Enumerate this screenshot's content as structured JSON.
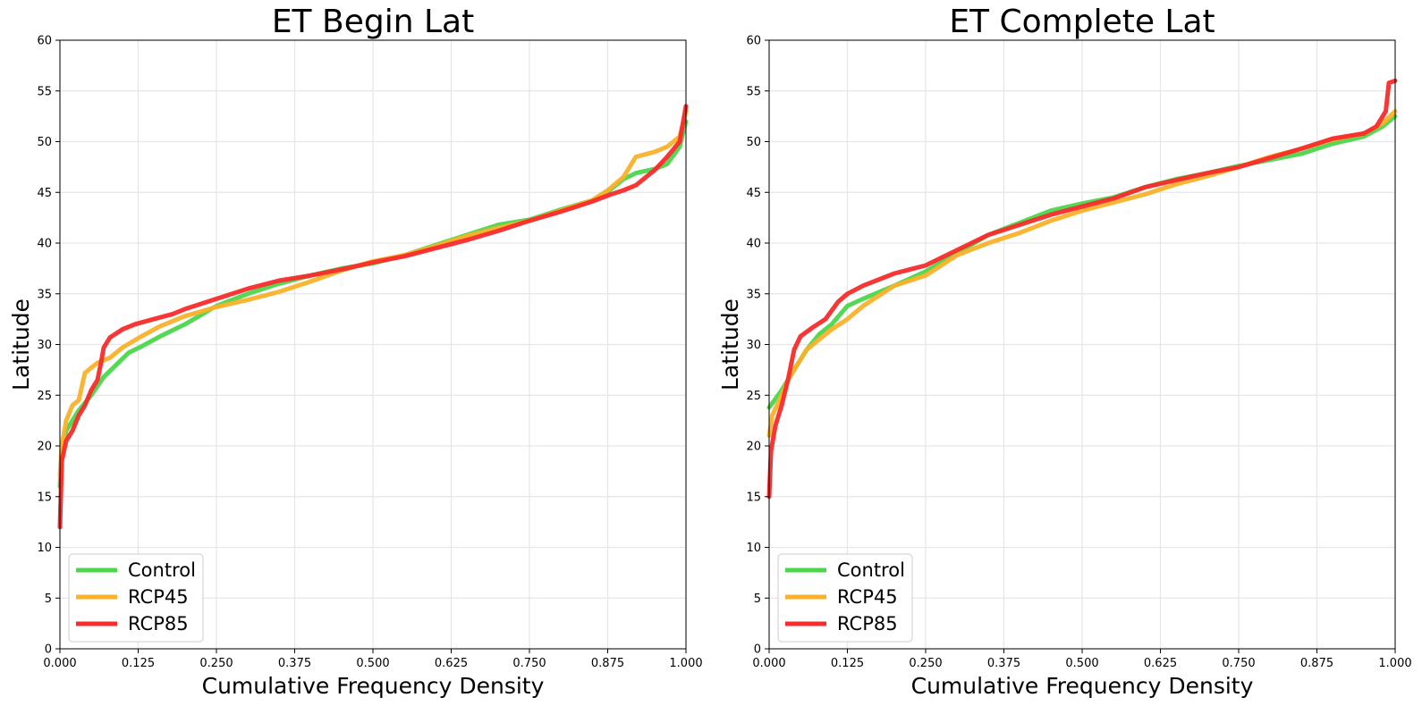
{
  "colors": {
    "Control": "#4cd64c",
    "RCP45": "#fbb12a",
    "RCP85": "#f92b2b",
    "grid": "#e6e6e6",
    "axis": "#000000"
  },
  "chart_data": [
    {
      "type": "line",
      "title": "ET Begin Lat",
      "xlabel": "Cumulative Frequency Density",
      "ylabel": "Latitude",
      "xlim": [
        0,
        1
      ],
      "ylim": [
        0,
        60
      ],
      "xticks": [
        "0.000",
        "0.125",
        "0.250",
        "0.375",
        "0.500",
        "0.625",
        "0.750",
        "0.875",
        "1.000"
      ],
      "yticks": [
        "0",
        "5",
        "10",
        "15",
        "20",
        "25",
        "30",
        "35",
        "40",
        "45",
        "50",
        "55",
        "60"
      ],
      "grid": true,
      "legend_position": "lower-left",
      "series": [
        {
          "name": "Control",
          "x": [
            0,
            0.003,
            0.01,
            0.02,
            0.03,
            0.05,
            0.07,
            0.09,
            0.11,
            0.13,
            0.16,
            0.2,
            0.25,
            0.3,
            0.35,
            0.4,
            0.45,
            0.5,
            0.55,
            0.6,
            0.65,
            0.7,
            0.75,
            0.8,
            0.85,
            0.88,
            0.9,
            0.92,
            0.95,
            0.97,
            0.99,
            1.0
          ],
          "y": [
            16,
            19.5,
            21.5,
            22.5,
            23.5,
            25,
            26.8,
            28,
            29.2,
            29.8,
            30.8,
            32,
            33.8,
            35,
            36,
            36.8,
            37.5,
            38,
            38.8,
            39.8,
            40.8,
            41.8,
            42.3,
            43.3,
            44.2,
            45.3,
            46.3,
            46.9,
            47.3,
            47.8,
            49.5,
            52
          ]
        },
        {
          "name": "RCP45",
          "x": [
            0,
            0.003,
            0.01,
            0.02,
            0.03,
            0.04,
            0.05,
            0.06,
            0.08,
            0.1,
            0.13,
            0.16,
            0.2,
            0.25,
            0.3,
            0.35,
            0.4,
            0.45,
            0.5,
            0.55,
            0.6,
            0.65,
            0.7,
            0.75,
            0.8,
            0.85,
            0.875,
            0.9,
            0.92,
            0.95,
            0.97,
            0.99,
            1.0
          ],
          "y": [
            17,
            20,
            22.5,
            24,
            24.5,
            27.2,
            27.7,
            28.2,
            28.7,
            29.7,
            30.8,
            31.8,
            32.8,
            33.7,
            34.4,
            35.2,
            36.2,
            37.3,
            38.2,
            38.8,
            39.7,
            40.7,
            41.5,
            42.2,
            43.2,
            44.2,
            45.2,
            46.5,
            48.5,
            49,
            49.5,
            50.5,
            53
          ]
        },
        {
          "name": "RCP85",
          "x": [
            0,
            0.003,
            0.01,
            0.02,
            0.03,
            0.04,
            0.05,
            0.06,
            0.065,
            0.07,
            0.08,
            0.1,
            0.12,
            0.15,
            0.18,
            0.2,
            0.25,
            0.3,
            0.35,
            0.4,
            0.45,
            0.5,
            0.55,
            0.6,
            0.65,
            0.7,
            0.75,
            0.8,
            0.85,
            0.88,
            0.9,
            0.92,
            0.95,
            0.97,
            0.99,
            1.0
          ],
          "y": [
            12,
            18.5,
            20.5,
            21.5,
            23,
            24,
            25.5,
            26.5,
            28,
            29.7,
            30.7,
            31.5,
            32,
            32.5,
            33,
            33.5,
            34.5,
            35.5,
            36.3,
            36.8,
            37.4,
            38.1,
            38.7,
            39.5,
            40.3,
            41.2,
            42.2,
            43.1,
            44.1,
            44.8,
            45.2,
            45.7,
            47.2,
            48.5,
            50,
            53.5
          ]
        }
      ]
    },
    {
      "type": "line",
      "title": "ET Complete Lat",
      "xlabel": "Cumulative Frequency Density",
      "ylabel": "Latitude",
      "xlim": [
        0,
        1
      ],
      "ylim": [
        0,
        60
      ],
      "xticks": [
        "0.000",
        "0.125",
        "0.250",
        "0.375",
        "0.500",
        "0.625",
        "0.750",
        "0.875",
        "1.000"
      ],
      "yticks": [
        "0",
        "5",
        "10",
        "15",
        "20",
        "25",
        "30",
        "35",
        "40",
        "45",
        "50",
        "55",
        "60"
      ],
      "grid": true,
      "legend_position": "lower-left",
      "series": [
        {
          "name": "Control",
          "x": [
            0,
            0.005,
            0.02,
            0.03,
            0.04,
            0.06,
            0.08,
            0.1,
            0.125,
            0.15,
            0.2,
            0.25,
            0.3,
            0.35,
            0.4,
            0.45,
            0.5,
            0.55,
            0.6,
            0.65,
            0.7,
            0.75,
            0.8,
            0.85,
            0.9,
            0.95,
            0.98,
            1.0
          ],
          "y": [
            23.8,
            24.2,
            25.5,
            26.5,
            27.5,
            29.5,
            31,
            32,
            33.8,
            34.5,
            35.8,
            37.2,
            39,
            40.8,
            42,
            43.2,
            43.9,
            44.5,
            45.5,
            46.3,
            46.9,
            47.6,
            48.2,
            48.8,
            49.8,
            50.5,
            51.5,
            52.5
          ]
        },
        {
          "name": "RCP45",
          "x": [
            0,
            0.005,
            0.02,
            0.03,
            0.04,
            0.06,
            0.08,
            0.1,
            0.125,
            0.15,
            0.2,
            0.25,
            0.3,
            0.35,
            0.4,
            0.45,
            0.5,
            0.55,
            0.6,
            0.65,
            0.7,
            0.75,
            0.8,
            0.85,
            0.9,
            0.95,
            0.98,
            1.0
          ],
          "y": [
            21,
            23,
            25,
            26.5,
            27.5,
            29.5,
            30.5,
            31.5,
            32.5,
            33.8,
            35.8,
            36.8,
            38.8,
            40,
            41,
            42.2,
            43.2,
            44,
            44.8,
            45.8,
            46.6,
            47.5,
            48.5,
            49.3,
            50.2,
            50.8,
            51.8,
            53
          ]
        },
        {
          "name": "RCP85",
          "x": [
            0,
            0.003,
            0.01,
            0.02,
            0.03,
            0.04,
            0.05,
            0.07,
            0.09,
            0.11,
            0.125,
            0.15,
            0.2,
            0.25,
            0.3,
            0.35,
            0.4,
            0.45,
            0.5,
            0.55,
            0.6,
            0.65,
            0.7,
            0.75,
            0.8,
            0.85,
            0.9,
            0.95,
            0.97,
            0.985,
            0.99,
            1.0
          ],
          "y": [
            15,
            19.5,
            22,
            24,
            26.5,
            29.5,
            30.8,
            31.7,
            32.5,
            34.2,
            35,
            35.8,
            37,
            37.8,
            39.3,
            40.8,
            41.8,
            42.8,
            43.6,
            44.4,
            45.5,
            46.2,
            46.9,
            47.5,
            48.4,
            49.3,
            50.3,
            50.8,
            51.5,
            53,
            55.8,
            56
          ]
        }
      ]
    }
  ]
}
